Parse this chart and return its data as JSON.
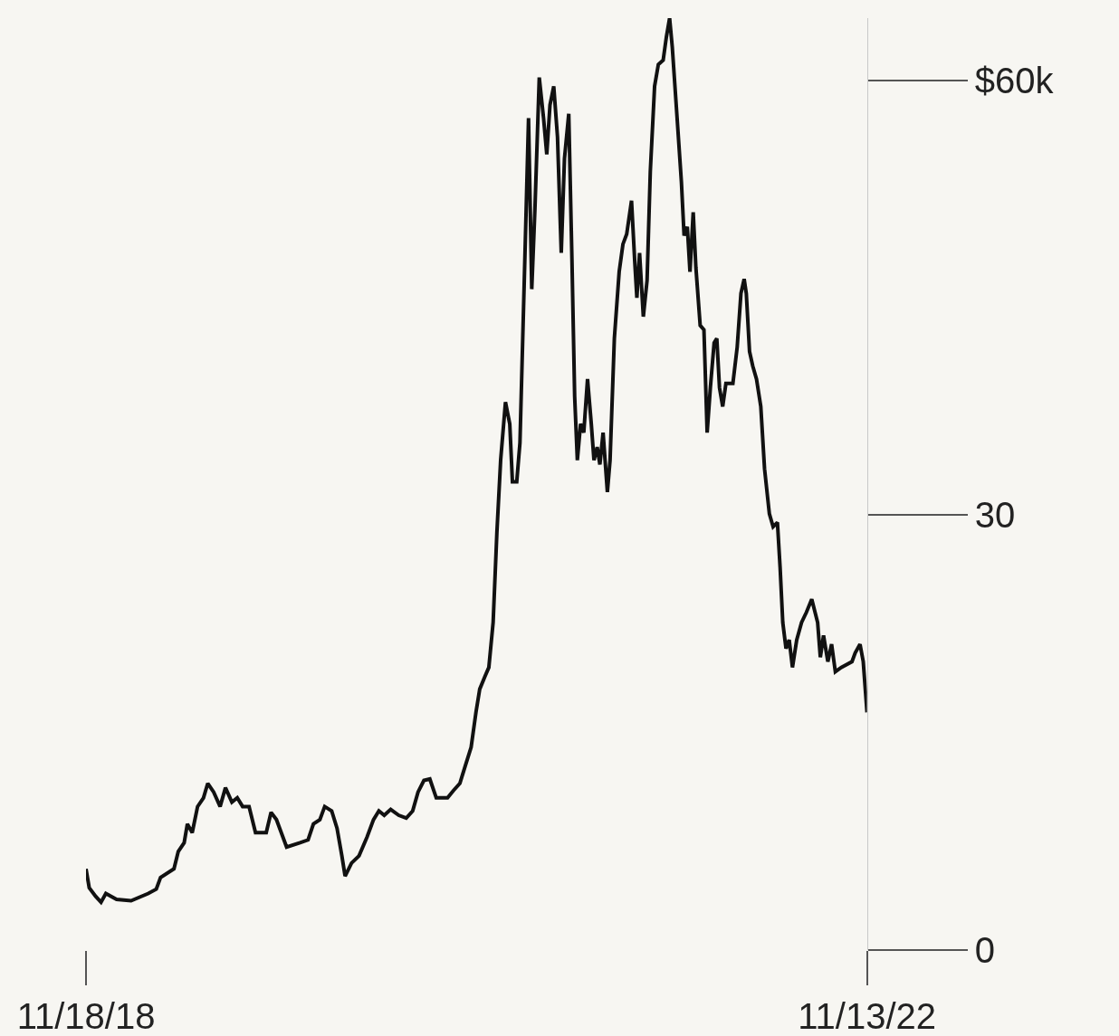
{
  "chart_data": {
    "type": "line",
    "x": [
      "2018-11-18",
      "2018-11-24",
      "2018-12-06",
      "2018-12-16",
      "2018-12-25",
      "2019-01-14",
      "2019-02-10",
      "2019-03-14",
      "2019-03-29",
      "2019-04-06",
      "2019-05-01",
      "2019-05-09",
      "2019-05-20",
      "2019-05-26",
      "2019-06-04",
      "2019-06-14",
      "2019-06-25",
      "2019-07-03",
      "2019-07-14",
      "2019-07-26",
      "2019-08-05",
      "2019-08-17",
      "2019-08-27",
      "2019-09-06",
      "2019-09-18",
      "2019-09-30",
      "2019-10-20",
      "2019-10-29",
      "2019-11-08",
      "2019-11-27",
      "2019-12-22",
      "2020-01-06",
      "2020-01-16",
      "2020-01-28",
      "2020-02-06",
      "2020-02-19",
      "2020-02-29",
      "2020-03-09",
      "2020-03-15",
      "2020-03-27",
      "2020-04-10",
      "2020-04-25",
      "2020-05-07",
      "2020-05-17",
      "2020-05-27",
      "2020-06-08",
      "2020-06-23",
      "2020-07-07",
      "2020-07-19",
      "2020-07-29",
      "2020-08-09",
      "2020-08-20",
      "2020-09-01",
      "2020-09-22",
      "2020-10-03",
      "2020-10-15",
      "2020-10-25",
      "2020-11-05",
      "2020-11-14",
      "2020-11-21",
      "2020-12-01",
      "2020-12-08",
      "2020-12-16",
      "2020-12-23",
      "2020-12-30",
      "2021-01-08",
      "2021-01-16",
      "2021-01-21",
      "2021-01-29",
      "2021-02-04",
      "2021-02-13",
      "2021-02-20",
      "2021-02-26",
      "2021-03-04",
      "2021-03-12",
      "2021-03-20",
      "2021-03-26",
      "2021-04-01",
      "2021-04-08",
      "2021-04-15",
      "2021-04-22",
      "2021-04-28",
      "2021-05-06",
      "2021-05-12",
      "2021-05-17",
      "2021-05-22",
      "2021-05-28",
      "2021-06-03",
      "2021-06-10",
      "2021-06-17",
      "2021-06-22",
      "2021-06-28",
      "2021-07-03",
      "2021-07-09",
      "2021-07-17",
      "2021-07-22",
      "2021-07-30",
      "2021-08-08",
      "2021-08-15",
      "2021-08-22",
      "2021-08-31",
      "2021-09-06",
      "2021-09-10",
      "2021-09-15",
      "2021-09-22",
      "2021-09-29",
      "2021-10-05",
      "2021-10-13",
      "2021-10-20",
      "2021-10-29",
      "2021-11-04",
      "2021-11-10",
      "2021-11-15",
      "2021-11-24",
      "2021-12-02",
      "2021-12-07",
      "2021-12-13",
      "2021-12-18",
      "2021-12-24",
      "2021-12-29",
      "2022-01-06",
      "2022-01-13",
      "2022-01-19",
      "2022-01-25",
      "2022-02-01",
      "2022-02-06",
      "2022-02-11",
      "2022-02-17",
      "2022-02-23",
      "2022-03-08",
      "2022-03-16",
      "2022-03-23",
      "2022-03-29",
      "2022-04-02",
      "2022-04-08",
      "2022-04-14",
      "2022-04-21",
      "2022-04-29",
      "2022-05-06",
      "2022-05-15",
      "2022-05-22",
      "2022-05-30",
      "2022-06-04",
      "2022-06-09",
      "2022-06-15",
      "2022-06-21",
      "2022-06-27",
      "2022-07-05",
      "2022-07-14",
      "2022-07-23",
      "2022-08-02",
      "2022-08-13",
      "2022-08-18",
      "2022-08-24",
      "2022-09-01",
      "2022-09-08",
      "2022-09-15",
      "2022-09-26",
      "2022-10-16",
      "2022-10-22",
      "2022-10-31",
      "2022-11-06",
      "2022-11-13"
    ],
    "series": [
      {
        "color": "#111111",
        "values": [
          5.6,
          4.3,
          3.7,
          3.3,
          3.9,
          3.5,
          3.4,
          3.9,
          4.2,
          5.0,
          5.6,
          6.8,
          7.4,
          8.7,
          8.1,
          9.9,
          10.5,
          11.5,
          10.9,
          9.9,
          11.2,
          10.2,
          10.5,
          9.9,
          9.9,
          8.1,
          8.1,
          9.5,
          9.0,
          7.1,
          7.4,
          7.6,
          8.7,
          9.0,
          9.9,
          9.6,
          8.4,
          6.5,
          5.1,
          6.0,
          6.5,
          7.8,
          9.0,
          9.6,
          9.3,
          9.7,
          9.3,
          9.1,
          9.6,
          10.9,
          11.7,
          11.8,
          10.5,
          10.5,
          11.0,
          11.5,
          12.7,
          14.0,
          16.4,
          18.0,
          18.9,
          19.5,
          22.6,
          28.8,
          33.8,
          37.8,
          36.3,
          32.3,
          32.3,
          35.0,
          47.5,
          57.4,
          45.6,
          51.2,
          60.2,
          57.4,
          54.9,
          58.3,
          59.6,
          56.1,
          48.1,
          54.6,
          57.7,
          47.5,
          38.2,
          33.8,
          36.3,
          35.7,
          39.4,
          36.3,
          33.8,
          34.7,
          33.5,
          35.7,
          31.6,
          33.8,
          42.2,
          46.8,
          48.7,
          49.4,
          51.7,
          47.5,
          45.0,
          48.1,
          43.7,
          46.2,
          53.7,
          59.6,
          61.1,
          61.4,
          63.0,
          64.3,
          62.3,
          57.4,
          53.0,
          49.3,
          49.9,
          46.8,
          50.9,
          47.1,
          43.1,
          42.8,
          35.7,
          38.8,
          41.9,
          42.2,
          38.8,
          37.5,
          39.1,
          39.1,
          41.6,
          45.3,
          46.3,
          45.3,
          41.3,
          40.3,
          39.4,
          37.5,
          33.2,
          30.1,
          29.2,
          29.5,
          26.4,
          22.6,
          20.8,
          21.4,
          19.5,
          21.4,
          22.6,
          23.3,
          24.2,
          22.6,
          20.2,
          21.7,
          19.9,
          21.1,
          19.2,
          19.5,
          19.9,
          20.5,
          21.1,
          19.9,
          16.4
        ]
      }
    ],
    "xlim": [
      "2018-11-18",
      "2022-11-13"
    ],
    "xticks": [
      {
        "value": "2018-11-18",
        "label": "11/18/18"
      },
      {
        "value": "2022-11-13",
        "label": "11/13/22"
      }
    ],
    "ylim": [
      0,
      64.3
    ],
    "yticks": [
      0,
      30,
      {
        "value": 60,
        "label": "$60k"
      }
    ],
    "marker": "none",
    "line_style": "solid"
  }
}
